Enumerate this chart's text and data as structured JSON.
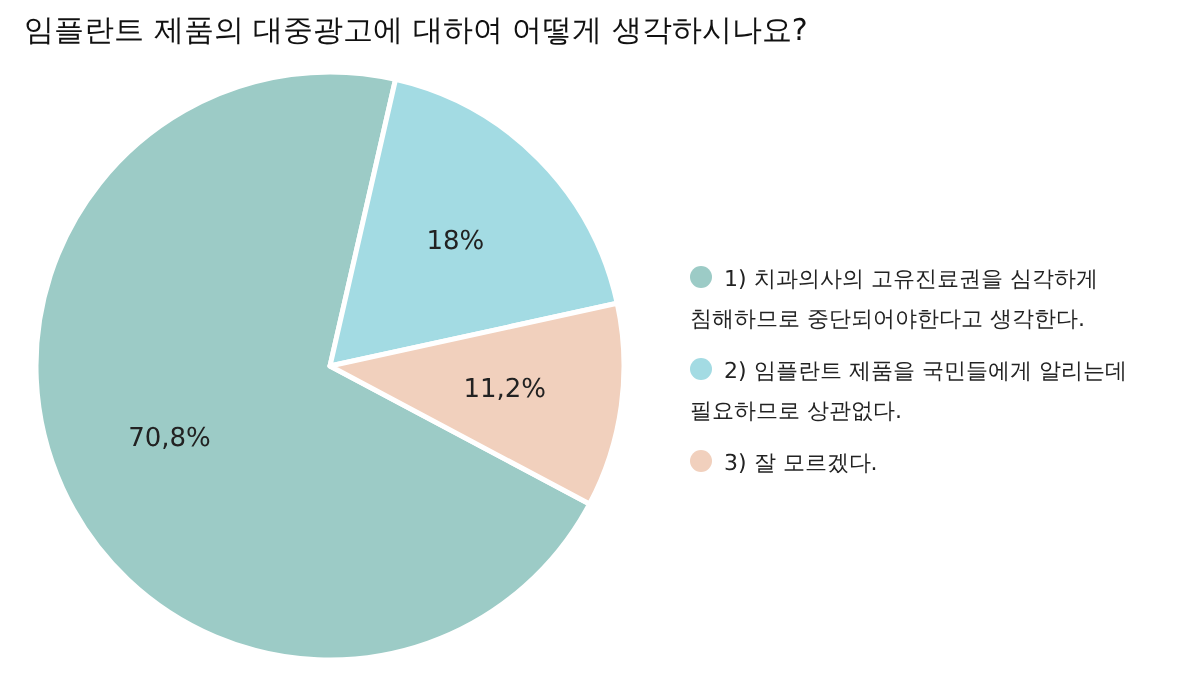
{
  "chart_data": {
    "type": "pie",
    "title": "임플란트 제품의 대중광고에 대하여 어떻게 생각하시나요?",
    "categories": [
      "1) 치과의사의 고유진료권을 심각하게 침해하므로 중단되어야한다고 생각한다.",
      "2) 임플란트 제품을 국민들에게 알리는데 필요하므로 상관없다.",
      "3) 잘 모르겠다."
    ],
    "values": [
      70.8,
      18,
      11.2
    ],
    "colors": [
      "#9ccbc6",
      "#a3dbe3",
      "#f1d0bd"
    ],
    "value_labels": [
      "70,8%",
      "18%",
      "11,2%"
    ],
    "legend": "right"
  }
}
